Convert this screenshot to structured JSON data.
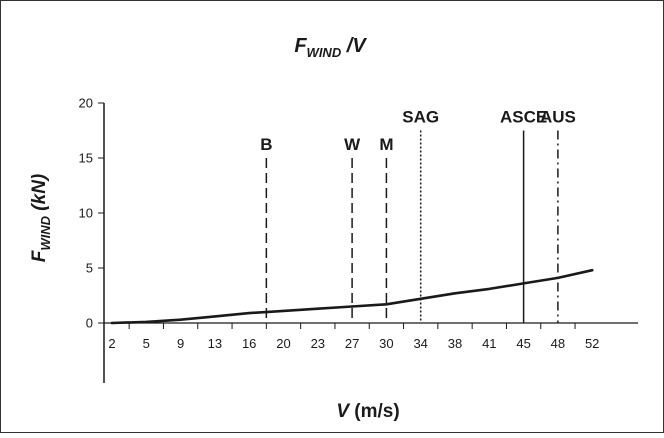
{
  "chart_data": {
    "type": "line",
    "title": {
      "main": "F",
      "sub": "WIND",
      "rest": " /V"
    },
    "xlabel": {
      "main": "V",
      "rest": "  (m/s)"
    },
    "ylabel": {
      "main": "F",
      "sub": "WIND",
      "rest": "  (kN)"
    },
    "ylim": [
      0,
      20
    ],
    "yticks": [
      "0",
      "5",
      "10",
      "15",
      "20"
    ],
    "xticks": [
      "2",
      "5",
      "9",
      "13",
      "16",
      "20",
      "23",
      "27",
      "30",
      "34",
      "38",
      "41",
      "45",
      "48",
      "52"
    ],
    "grid": false,
    "series": [
      {
        "x": [
          2,
          5,
          9,
          13,
          16,
          20,
          23,
          27,
          30,
          34,
          38,
          41,
          45,
          48,
          52
        ],
        "y": [
          0.0,
          0.1,
          0.3,
          0.6,
          0.9,
          1.1,
          1.3,
          1.5,
          1.7,
          2.2,
          2.7,
          3.1,
          3.6,
          4.1,
          4.8
        ]
      }
    ],
    "reference_lines": [
      {
        "label": "B",
        "x": 18,
        "top": 15,
        "style": "dashed"
      },
      {
        "label": "W",
        "x": 27,
        "top": 15,
        "style": "dashed"
      },
      {
        "label": "M",
        "x": 30,
        "top": 15,
        "style": "dashed"
      },
      {
        "label": "SAG",
        "x": 34,
        "top": 17.5,
        "style": "dotted"
      },
      {
        "label": "ASCE",
        "x": 45,
        "top": 17.5,
        "style": "solid"
      },
      {
        "label": "AUS",
        "x": 48,
        "top": 17.5,
        "style": "dashdot"
      }
    ]
  }
}
